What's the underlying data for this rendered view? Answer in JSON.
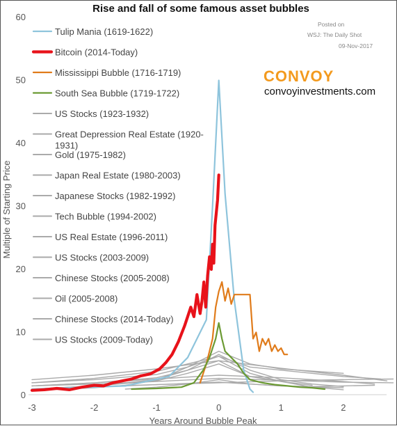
{
  "chart_data": {
    "type": "line",
    "title": "Rise and fall of some famous asset bubbles",
    "xlabel": "Years Around Bubble Peak",
    "ylabel": "Multiple of Starting Price",
    "xlim": [
      -3,
      2.75
    ],
    "ylim": [
      0,
      60
    ],
    "x_ticks": [
      "-3",
      "-2",
      "-1",
      "0",
      "1",
      "2"
    ],
    "y_ticks": [
      "0",
      "10",
      "20",
      "30",
      "40",
      "50",
      "60"
    ],
    "grid": false,
    "legend_position": "top-left",
    "source": {
      "line1": "Posted on",
      "line2": "WSJ: The Daily Shot",
      "line3": "09-Nov-2017"
    },
    "brand": {
      "name": "CONVOY",
      "url": "convoyinvestments.com"
    },
    "colors": {
      "tulip": "#8ec4dc",
      "bitcoin": "#e8121a",
      "mississippi": "#e07b1a",
      "south_sea": "#6b9a33",
      "gray": "#aaaaaa"
    },
    "series": [
      {
        "name": "Tulip Mania (1619-1622)",
        "color": "#8ec4dc",
        "width": 2.2,
        "x": [
          -3,
          -1.5,
          -0.8,
          -0.5,
          -0.2,
          -0.1,
          0,
          0.1,
          0.25,
          0.4,
          0.5,
          0.55
        ],
        "y": [
          1,
          1.5,
          3,
          6,
          12,
          30,
          50,
          32,
          15,
          4,
          1,
          0.5
        ]
      },
      {
        "name": "Bitcoin (2014-Today)",
        "color": "#e8121a",
        "width": 4.2,
        "x": [
          -3,
          -2.8,
          -2.6,
          -2.4,
          -2.2,
          -2,
          -1.85,
          -1.7,
          -1.55,
          -1.4,
          -1.25,
          -1.1,
          -0.95,
          -0.85,
          -0.75,
          -0.65,
          -0.55,
          -0.5,
          -0.45,
          -0.4,
          -0.35,
          -0.3,
          -0.27,
          -0.24,
          -0.21,
          -0.18,
          -0.15,
          -0.12,
          -0.1,
          -0.08,
          -0.06,
          -0.04,
          -0.02,
          0
        ],
        "y": [
          0.8,
          0.9,
          1.1,
          0.9,
          1.3,
          1.6,
          1.5,
          2.0,
          2.3,
          2.6,
          3.1,
          3.4,
          4.2,
          5.2,
          6.5,
          8.5,
          11,
          12.5,
          14,
          12.5,
          16,
          13,
          15,
          18,
          14,
          19,
          22,
          20,
          24,
          21,
          27,
          29,
          31,
          35
        ]
      },
      {
        "name": "Mississippi Bubble (1716-1719)",
        "color": "#e07b1a",
        "width": 2.2,
        "x": [
          -0.3,
          -0.25,
          -0.2,
          -0.15,
          -0.1,
          -0.05,
          0,
          0.05,
          0.1,
          0.15,
          0.2,
          0.25,
          0.3,
          0.35,
          0.4,
          0.45,
          0.5,
          0.55,
          0.6,
          0.65,
          0.7,
          0.75,
          0.8,
          0.85,
          0.9,
          0.95,
          1.0,
          1.05,
          1.1
        ],
        "y": [
          2,
          3.5,
          5,
          7,
          9,
          14,
          16.5,
          18,
          15,
          17,
          14.5,
          16,
          16,
          16,
          16,
          16,
          16,
          9,
          10,
          7,
          9,
          8,
          9,
          7,
          8,
          7,
          7.5,
          6.5,
          6.5
        ]
      },
      {
        "name": "South Sea Bubble (1719-1722)",
        "color": "#6b9a33",
        "width": 2.2,
        "x": [
          -1.4,
          -1,
          -0.6,
          -0.4,
          -0.25,
          -0.15,
          -0.05,
          0,
          0.05,
          0.1,
          0.2,
          0.3,
          0.4,
          0.5,
          0.7,
          0.9,
          1.1,
          1.3,
          1.5,
          1.7
        ],
        "y": [
          1,
          1.1,
          1.3,
          2,
          4,
          6,
          9,
          11.5,
          9,
          7,
          6,
          5,
          3.5,
          2.5,
          2,
          1.7,
          1.5,
          1.3,
          1.2,
          1
        ]
      },
      {
        "name": "US Stocks (1923-1932)",
        "color": "#aaaaaa",
        "width": 1.4,
        "x": [
          -3,
          -2,
          -1,
          -0.5,
          0,
          0.5,
          1,
          1.5,
          2
        ],
        "y": [
          1,
          1.5,
          2.3,
          3.5,
          5,
          3,
          2.2,
          1.3,
          0.9
        ]
      },
      {
        "name": "Great Depression Real Estate (1920-1931)",
        "color": "#aaaaaa",
        "width": 1.4,
        "x": [
          -3,
          -2,
          -1,
          0,
          1,
          2,
          2.5
        ],
        "y": [
          1.5,
          2,
          2.6,
          3.2,
          2.8,
          2.2,
          1.8
        ]
      },
      {
        "name": "Gold (1975-1982)",
        "color": "#aaaaaa",
        "width": 1.4,
        "x": [
          -3,
          -2,
          -1,
          -0.5,
          0,
          0.5,
          1,
          2
        ],
        "y": [
          2,
          2.5,
          3.3,
          4.5,
          7,
          5,
          4.2,
          3.5
        ]
      },
      {
        "name": "Japan Real Estate (1980-2003)",
        "color": "#aaaaaa",
        "width": 1.4,
        "x": [
          -3,
          -2,
          -1,
          0,
          1,
          2,
          2.7
        ],
        "y": [
          2.5,
          3.2,
          4.2,
          5.5,
          4.3,
          3.2,
          2.3
        ]
      },
      {
        "name": "Japanese Stocks (1982-1992)",
        "color": "#aaaaaa",
        "width": 1.4,
        "x": [
          -3,
          -2,
          -1,
          -0.5,
          0,
          0.5,
          1,
          2,
          2.6
        ],
        "y": [
          2,
          2.7,
          3.8,
          5,
          6.2,
          4.5,
          4,
          3,
          2.6
        ]
      },
      {
        "name": "Tech Bubble (1994-2002)",
        "color": "#aaaaaa",
        "width": 1.4,
        "x": [
          -3,
          -2,
          -1,
          -0.5,
          0,
          0.5,
          1,
          1.5,
          2
        ],
        "y": [
          1,
          1.5,
          2.5,
          4,
          6.5,
          4,
          2.5,
          1.8,
          1.4
        ]
      },
      {
        "name": "US Real Estate (1996-2011)",
        "color": "#aaaaaa",
        "width": 1.4,
        "x": [
          -3,
          -2,
          -1,
          0,
          1,
          2,
          2.8
        ],
        "y": [
          1.5,
          1.8,
          2.2,
          2.7,
          2.4,
          2.1,
          2
        ]
      },
      {
        "name": "US Stocks (2003-2009)",
        "color": "#aaaaaa",
        "width": 1.4,
        "x": [
          -3,
          -2,
          -1,
          0,
          1,
          2
        ],
        "y": [
          1,
          1.3,
          1.7,
          2.1,
          1.5,
          1.2
        ]
      },
      {
        "name": "Chinese Stocks (2005-2008)",
        "color": "#aaaaaa",
        "width": 1.4,
        "x": [
          -2.5,
          -2,
          -1.5,
          -1,
          -0.5,
          0,
          0.5,
          1,
          1.5
        ],
        "y": [
          1,
          1.2,
          1.6,
          2.4,
          4.5,
          6.2,
          3.5,
          2.2,
          1.6
        ]
      },
      {
        "name": "Oil (2005-2008)",
        "color": "#aaaaaa",
        "width": 1.4,
        "x": [
          -3,
          -2,
          -1,
          -0.5,
          0,
          0.5,
          1,
          2
        ],
        "y": [
          1.5,
          2,
          2.8,
          4,
          5.5,
          3,
          2.3,
          2.5
        ]
      },
      {
        "name": "Chinese Stocks (2014-Today)",
        "color": "#aaaaaa",
        "width": 1.4,
        "x": [
          -1.5,
          -1,
          -0.5,
          0,
          0.5,
          1,
          1.5,
          2,
          2.5
        ],
        "y": [
          1,
          1.3,
          1.8,
          2.5,
          1.8,
          1.5,
          1.4,
          1.5,
          1.6
        ]
      },
      {
        "name": "US Stocks (2009-Today)",
        "color": "#aaaaaa",
        "width": 1.4,
        "x": [
          -3,
          -2,
          -1,
          0,
          1,
          2,
          2.8
        ],
        "y": [
          1,
          1.4,
          1.7,
          2,
          2.3,
          2.5,
          2.6
        ]
      }
    ]
  }
}
